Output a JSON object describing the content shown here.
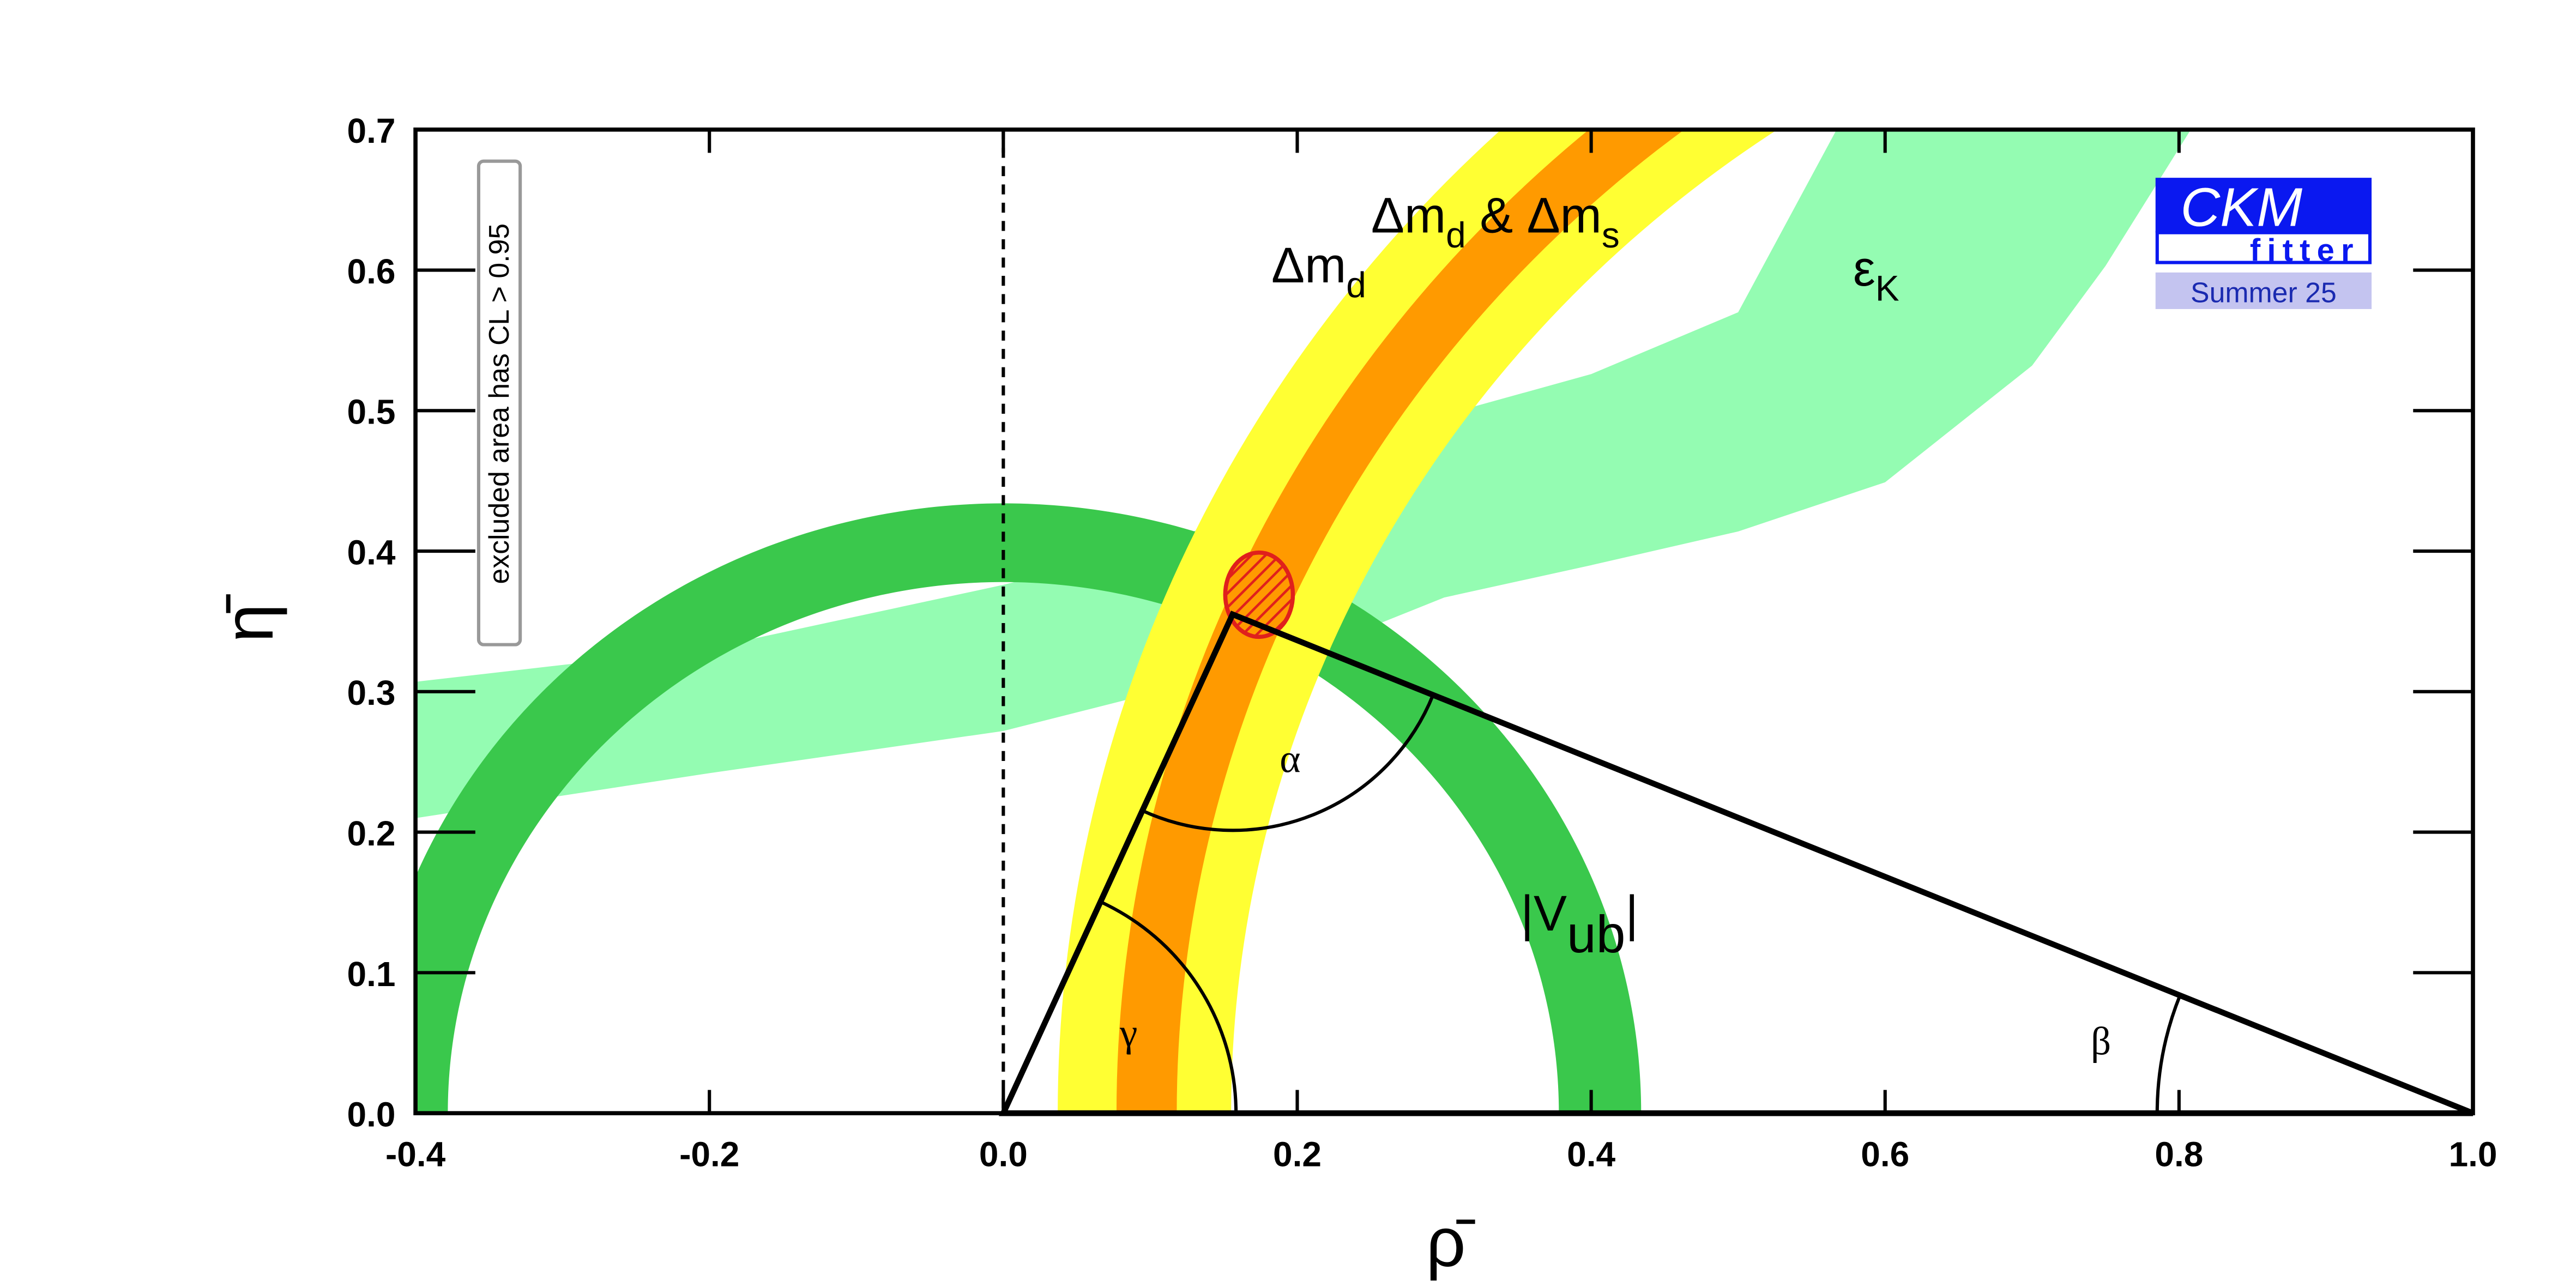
{
  "chart_data": {
    "type": "ckm",
    "x_label": "ρ̄",
    "y_label": "η̄",
    "xlim": [
      -0.4,
      1.0
    ],
    "ylim": [
      0,
      0.7
    ],
    "xticks": [
      -0.4,
      -0.2,
      {
        "value": 0,
        "label": "0.0"
      },
      0.2,
      0.4,
      0.6,
      0.8,
      {
        "value": 1,
        "label": "1.0"
      }
    ],
    "yticks": [
      {
        "value": 0,
        "label": "0.0"
      },
      0.1,
      0.2,
      0.3,
      0.4,
      0.5,
      0.6,
      0.7
    ],
    "constraints": [
      {
        "kind": "band",
        "color": "#94fcb2",
        "upper": {
          "x": [
            -0.4,
            -0.2,
            0,
            0.1,
            0.2,
            0.3,
            0.4,
            0.5,
            0.567
          ],
          "y": [
            0.307,
            0.331,
            0.376,
            0.402,
            0.443,
            0.497,
            0.526,
            0.57,
            0.7
          ]
        },
        "lower": {
          "x": [
            -0.4,
            -0.2,
            0,
            0.2,
            0.3,
            0.4,
            0.5,
            0.6,
            0.7,
            0.75,
            0.808
          ],
          "y": [
            0.21,
            0.242,
            0.272,
            0.325,
            0.367,
            0.39,
            0.414,
            0.449,
            0.532,
            0.603,
            0.7
          ]
        }
      },
      {
        "kind": "ring",
        "color": "#3ac84c",
        "center": [
          0,
          0
        ],
        "radii": [
          0.378,
          0.434
        ]
      },
      {
        "kind": "ring",
        "color": "#ffff33",
        "center": [
          1,
          0
        ],
        "radii": [
          0.845,
          0.963
        ]
      },
      {
        "kind": "ring",
        "color": "#ff9a00",
        "center": [
          1,
          0
        ],
        "radii": [
          0.882,
          0.923
        ]
      }
    ],
    "fit_region": {
      "center": [
        0.174,
        0.369
      ],
      "half_size": [
        0.023,
        0.03
      ],
      "color": "#e0201c"
    },
    "triangle": {
      "x": [
        0,
        1,
        0.156
      ],
      "y": [
        0,
        0,
        0.355
      ]
    },
    "angles": [
      "γ",
      "β",
      "α"
    ],
    "annotations": [
      {
        "parts": [
          {
            "t": "Δm"
          },
          {
            "sub": "d"
          }
        ]
      },
      {
        "parts": [
          {
            "t": "Δm"
          },
          {
            "sub": "d"
          },
          {
            "t": " & Δm"
          },
          {
            "sub": "s"
          }
        ]
      },
      {
        "parts": [
          {
            "t": "ε"
          },
          {
            "sub": "K"
          }
        ]
      },
      {
        "parts": [
          {
            "t": "|V"
          },
          {
            "sub": "ub"
          },
          {
            "t": "|"
          }
        ]
      }
    ],
    "note": "excluded area has CL > 0.95",
    "logo": {
      "name": "CKM",
      "sub": "fitter",
      "edition": "Summer 25"
    }
  }
}
